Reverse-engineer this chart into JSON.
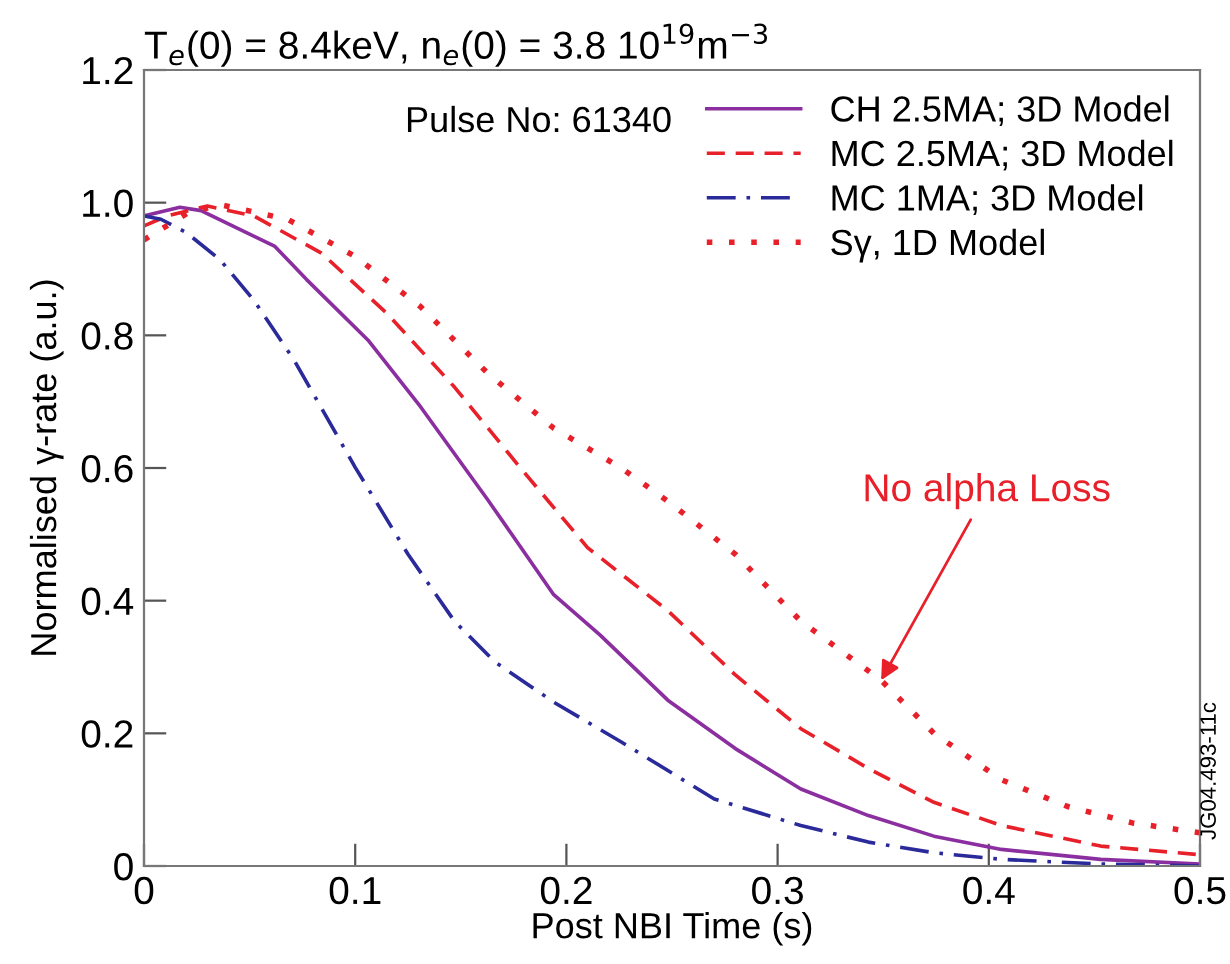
{
  "chart_data": {
    "type": "line",
    "title": "T$_{e}$(0) = 8.4keV, n$_{e}$(0) = 3.8 10$^{19}$m$^{−3}$",
    "xlabel": "Post NBI Time (s)",
    "ylabel": "Normalised γ-rate (a.u.)",
    "xlim": [
      0,
      0.5
    ],
    "ylim": [
      0,
      1.2
    ],
    "xticks": [
      0,
      0.1,
      0.2,
      0.3,
      0.4,
      0.5
    ],
    "yticks": [
      0,
      0.2,
      0.4,
      0.6,
      0.8,
      {
        "value": 1.0,
        "label": "1.0"
      },
      1.2
    ],
    "grid": false,
    "legend": "top right",
    "series": [
      {
        "name": "CH 2.5MA; 3D Model",
        "color": "#8b2fa0",
        "line_style": "solid",
        "x": [
          0,
          0.017,
          0.027,
          0.062,
          0.077,
          0.106,
          0.131,
          0.163,
          0.194,
          0.216,
          0.248,
          0.28,
          0.311,
          0.343,
          0.374,
          0.406,
          0.453,
          0.5
        ],
        "values": [
          0.98,
          0.993,
          0.988,
          0.934,
          0.884,
          0.793,
          0.692,
          0.551,
          0.409,
          0.348,
          0.25,
          0.177,
          0.116,
          0.076,
          0.045,
          0.025,
          0.01,
          0.003
        ]
      },
      {
        "name": "MC 2.5MA; 3D Model",
        "color": "#e8202a",
        "line_style": "dashed",
        "x": [
          0,
          0.011,
          0.03,
          0.052,
          0.084,
          0.115,
          0.147,
          0.178,
          0.21,
          0.248,
          0.28,
          0.311,
          0.343,
          0.374,
          0.406,
          0.453,
          0.5
        ],
        "values": [
          0.965,
          0.98,
          0.995,
          0.98,
          0.924,
          0.833,
          0.722,
          0.601,
          0.48,
          0.385,
          0.288,
          0.207,
          0.147,
          0.096,
          0.061,
          0.03,
          0.017
        ]
      },
      {
        "name": "MC 1MA; 3D Model",
        "color": "#2a2a9a",
        "line_style": "dashdot",
        "x": [
          0,
          0.008,
          0.02,
          0.036,
          0.052,
          0.071,
          0.1,
          0.125,
          0.147,
          0.166,
          0.194,
          0.226,
          0.27,
          0.311,
          0.343,
          0.374,
          0.406,
          0.453,
          0.5
        ],
        "values": [
          0.98,
          0.975,
          0.955,
          0.914,
          0.853,
          0.763,
          0.601,
          0.47,
          0.369,
          0.308,
          0.247,
          0.187,
          0.101,
          0.061,
          0.036,
          0.02,
          0.01,
          0.003,
          0.0
        ]
      },
      {
        "name": "Sγ, 1D Model",
        "color": "#e8202a",
        "line_style": "dotted",
        "x": [
          0,
          0.021,
          0.036,
          0.068,
          0.1,
          0.131,
          0.163,
          0.194,
          0.226,
          0.248,
          0.28,
          0.311,
          0.349,
          0.374,
          0.406,
          0.437,
          0.468,
          0.5
        ],
        "values": [
          0.944,
          0.985,
          0.997,
          0.975,
          0.919,
          0.843,
          0.742,
          0.66,
          0.6,
          0.55,
          0.47,
          0.369,
          0.28,
          0.2,
          0.13,
          0.09,
          0.065,
          0.05
        ]
      }
    ],
    "annotations": [
      "Pulse No: 61340",
      {
        "text": "No alpha Loss",
        "x": 0.349,
        "y": 0.28
      },
      "JG04.493-11c"
    ]
  }
}
